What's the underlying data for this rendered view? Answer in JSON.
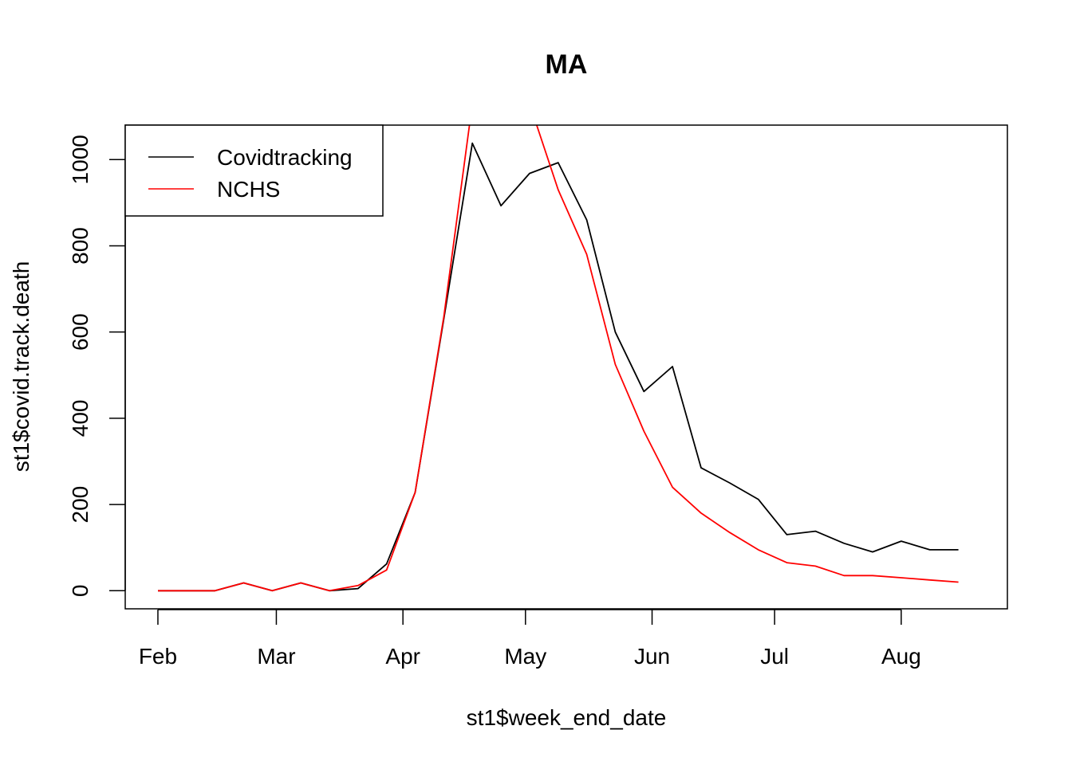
{
  "chart_data": {
    "type": "line",
    "title": "MA",
    "xlabel": "st1$week_end_date",
    "ylabel": "st1$covid.track.death",
    "x_ticks": [
      {
        "date": "2020-02-01",
        "label": "Feb"
      },
      {
        "date": "2020-03-01",
        "label": "Mar"
      },
      {
        "date": "2020-04-01",
        "label": "Apr"
      },
      {
        "date": "2020-05-01",
        "label": "May"
      },
      {
        "date": "2020-06-01",
        "label": "Jun"
      },
      {
        "date": "2020-07-01",
        "label": "Jul"
      },
      {
        "date": "2020-08-01",
        "label": "Aug"
      }
    ],
    "y_ticks": [
      0,
      200,
      400,
      600,
      800,
      1000
    ],
    "xlim": [
      "2020-01-24",
      "2020-08-27"
    ],
    "ylim": [
      -42,
      1080
    ],
    "grid": false,
    "legend_position": "top-left",
    "x": [
      "2020-02-01",
      "2020-02-08",
      "2020-02-15",
      "2020-02-22",
      "2020-02-29",
      "2020-03-07",
      "2020-03-14",
      "2020-03-21",
      "2020-03-28",
      "2020-04-04",
      "2020-04-11",
      "2020-04-18",
      "2020-04-25",
      "2020-05-02",
      "2020-05-09",
      "2020-05-16",
      "2020-05-23",
      "2020-05-30",
      "2020-06-06",
      "2020-06-13",
      "2020-06-20",
      "2020-06-27",
      "2020-07-04",
      "2020-07-11",
      "2020-07-18",
      "2020-07-25",
      "2020-08-01",
      "2020-08-08",
      "2020-08-15"
    ],
    "series": [
      {
        "name": "Covidtracking",
        "color": "#000000",
        "values": [
          0,
          0,
          0,
          18,
          0,
          18,
          0,
          5,
          62,
          228,
          630,
          1038,
          893,
          968,
          993,
          860,
          600,
          462,
          520,
          285,
          250,
          212,
          130,
          138,
          110,
          90,
          115,
          95,
          95
        ]
      },
      {
        "name": "NCHS",
        "color": "#ff0000",
        "values": [
          0,
          0,
          0,
          18,
          0,
          18,
          0,
          12,
          48,
          228,
          635,
          1130,
          1180,
          1130,
          930,
          780,
          525,
          370,
          240,
          180,
          135,
          95,
          65,
          57,
          35,
          35,
          30,
          25,
          20
        ]
      }
    ]
  }
}
